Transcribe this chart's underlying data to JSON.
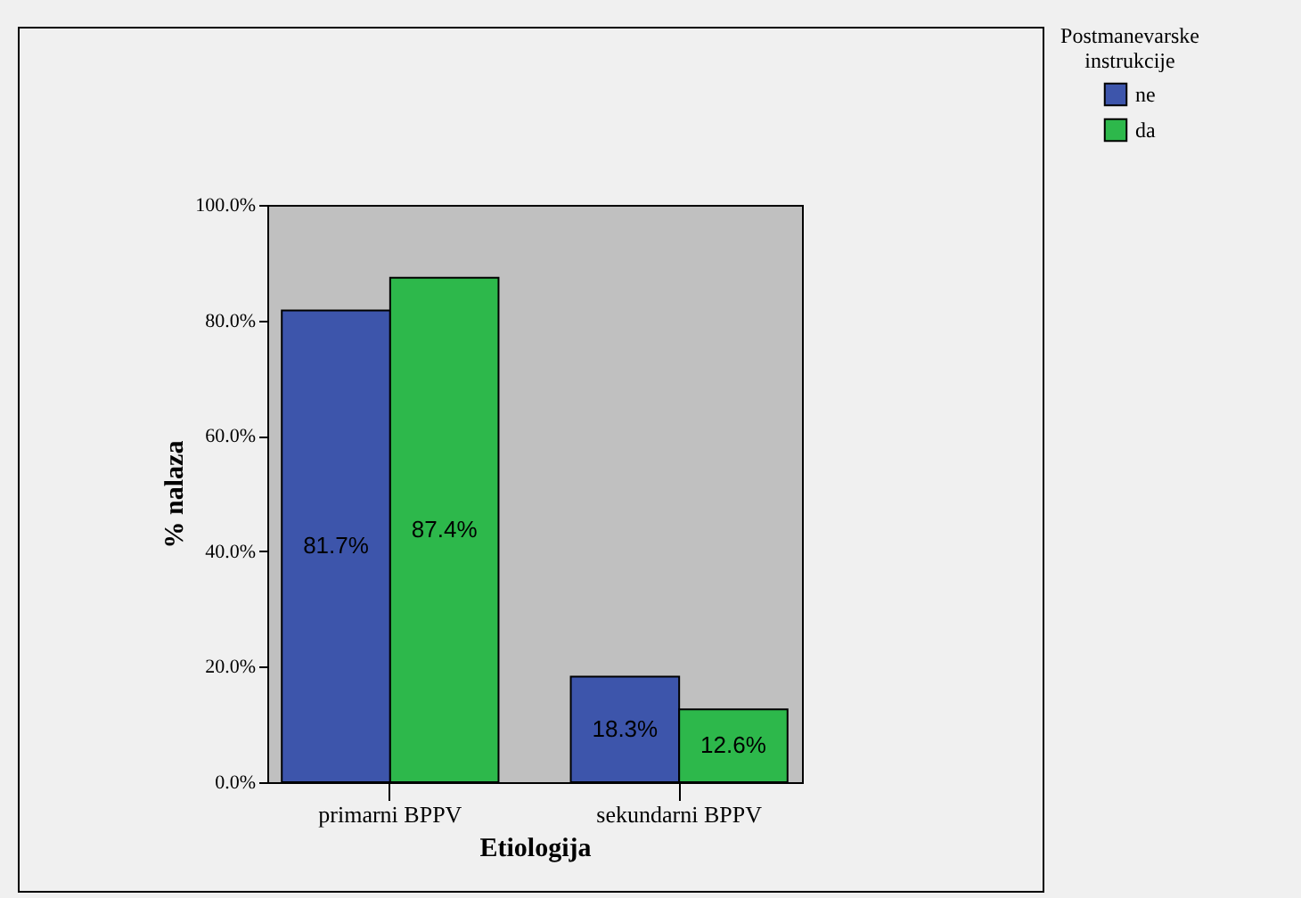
{
  "chart_data": {
    "type": "bar",
    "xlabel": "Etiologija",
    "ylabel": "% nalaza",
    "legend_title": "Postmanevarske instrukcije",
    "legend": "top right",
    "categories": [
      "primarni BPPV",
      "sekundarni BPPV"
    ],
    "series": [
      {
        "name": "ne",
        "color": "#3d55ab",
        "values": [
          81.7,
          18.3
        ],
        "value_labels": [
          "81.7%",
          "18.3%"
        ]
      },
      {
        "name": "da",
        "color": "#2db84b",
        "values": [
          87.4,
          12.6
        ],
        "value_labels": [
          "87.4%",
          "12.6%"
        ]
      }
    ],
    "ylim": [
      0,
      100
    ],
    "yticks": [
      {
        "value": 0,
        "label": "0.0%"
      },
      {
        "value": 20,
        "label": "20.0%"
      },
      {
        "value": 40,
        "label": "40.0%"
      },
      {
        "value": 60,
        "label": "60.0%"
      },
      {
        "value": 80,
        "label": "80.0%"
      },
      {
        "value": 100,
        "label": "100.0%"
      }
    ]
  }
}
